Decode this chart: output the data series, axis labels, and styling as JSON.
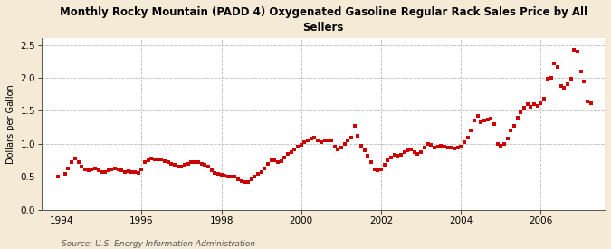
{
  "title": "Monthly Rocky Mountain (PADD 4) Oxygenated Gasoline Regular Rack Sales Price by All\nSellers",
  "ylabel": "Dollars per Gallon",
  "source": "Source: U.S. Energy Information Administration",
  "bg_color": "#f5ead5",
  "plot_bg_color": "#ffffff",
  "marker_color": "#cc0000",
  "ylim": [
    0.0,
    2.6
  ],
  "yticks": [
    0.0,
    0.5,
    1.0,
    1.5,
    2.0,
    2.5
  ],
  "xlim": [
    1993.5,
    2007.6
  ],
  "xticks": [
    1994,
    1996,
    1998,
    2000,
    2002,
    2004,
    2006
  ],
  "data": [
    [
      1993.917,
      0.51
    ],
    [
      1994.083,
      0.55
    ],
    [
      1994.167,
      0.63
    ],
    [
      1994.25,
      0.72
    ],
    [
      1994.333,
      0.78
    ],
    [
      1994.417,
      0.72
    ],
    [
      1994.5,
      0.66
    ],
    [
      1994.583,
      0.62
    ],
    [
      1994.667,
      0.6
    ],
    [
      1994.75,
      0.62
    ],
    [
      1994.833,
      0.63
    ],
    [
      1994.917,
      0.6
    ],
    [
      1995.0,
      0.57
    ],
    [
      1995.083,
      0.58
    ],
    [
      1995.167,
      0.6
    ],
    [
      1995.25,
      0.62
    ],
    [
      1995.333,
      0.63
    ],
    [
      1995.417,
      0.62
    ],
    [
      1995.5,
      0.6
    ],
    [
      1995.583,
      0.58
    ],
    [
      1995.667,
      0.59
    ],
    [
      1995.75,
      0.58
    ],
    [
      1995.833,
      0.57
    ],
    [
      1995.917,
      0.56
    ],
    [
      1996.0,
      0.62
    ],
    [
      1996.083,
      0.72
    ],
    [
      1996.167,
      0.75
    ],
    [
      1996.25,
      0.78
    ],
    [
      1996.333,
      0.77
    ],
    [
      1996.417,
      0.77
    ],
    [
      1996.5,
      0.76
    ],
    [
      1996.583,
      0.74
    ],
    [
      1996.667,
      0.72
    ],
    [
      1996.75,
      0.7
    ],
    [
      1996.833,
      0.68
    ],
    [
      1996.917,
      0.66
    ],
    [
      1997.0,
      0.66
    ],
    [
      1997.083,
      0.68
    ],
    [
      1997.167,
      0.7
    ],
    [
      1997.25,
      0.72
    ],
    [
      1997.333,
      0.73
    ],
    [
      1997.417,
      0.72
    ],
    [
      1997.5,
      0.7
    ],
    [
      1997.583,
      0.68
    ],
    [
      1997.667,
      0.65
    ],
    [
      1997.75,
      0.6
    ],
    [
      1997.833,
      0.56
    ],
    [
      1997.917,
      0.54
    ],
    [
      1998.0,
      0.53
    ],
    [
      1998.083,
      0.52
    ],
    [
      1998.167,
      0.51
    ],
    [
      1998.25,
      0.5
    ],
    [
      1998.333,
      0.5
    ],
    [
      1998.417,
      0.47
    ],
    [
      1998.5,
      0.44
    ],
    [
      1998.583,
      0.42
    ],
    [
      1998.667,
      0.43
    ],
    [
      1998.75,
      0.46
    ],
    [
      1998.833,
      0.5
    ],
    [
      1998.917,
      0.54
    ],
    [
      1999.0,
      0.58
    ],
    [
      1999.083,
      0.63
    ],
    [
      1999.167,
      0.7
    ],
    [
      1999.25,
      0.75
    ],
    [
      1999.333,
      0.75
    ],
    [
      1999.417,
      0.73
    ],
    [
      1999.5,
      0.74
    ],
    [
      1999.583,
      0.8
    ],
    [
      1999.667,
      0.85
    ],
    [
      1999.75,
      0.88
    ],
    [
      1999.833,
      0.92
    ],
    [
      1999.917,
      0.96
    ],
    [
      2000.0,
      0.98
    ],
    [
      2000.083,
      1.02
    ],
    [
      2000.167,
      1.06
    ],
    [
      2000.25,
      1.08
    ],
    [
      2000.333,
      1.1
    ],
    [
      2000.417,
      1.06
    ],
    [
      2000.5,
      1.03
    ],
    [
      2000.583,
      1.05
    ],
    [
      2000.667,
      1.06
    ],
    [
      2000.75,
      1.05
    ],
    [
      2000.833,
      0.96
    ],
    [
      2000.917,
      0.92
    ],
    [
      2001.0,
      0.95
    ],
    [
      2001.083,
      1.0
    ],
    [
      2001.167,
      1.05
    ],
    [
      2001.25,
      1.1
    ],
    [
      2001.333,
      1.27
    ],
    [
      2001.417,
      1.12
    ],
    [
      2001.5,
      0.97
    ],
    [
      2001.583,
      0.9
    ],
    [
      2001.667,
      0.82
    ],
    [
      2001.75,
      0.72
    ],
    [
      2001.833,
      0.62
    ],
    [
      2001.917,
      0.6
    ],
    [
      2002.0,
      0.62
    ],
    [
      2002.083,
      0.68
    ],
    [
      2002.167,
      0.75
    ],
    [
      2002.25,
      0.8
    ],
    [
      2002.333,
      0.83
    ],
    [
      2002.417,
      0.82
    ],
    [
      2002.5,
      0.84
    ],
    [
      2002.583,
      0.88
    ],
    [
      2002.667,
      0.9
    ],
    [
      2002.75,
      0.92
    ],
    [
      2002.833,
      0.88
    ],
    [
      2002.917,
      0.85
    ],
    [
      2003.0,
      0.88
    ],
    [
      2003.083,
      0.95
    ],
    [
      2003.167,
      1.0
    ],
    [
      2003.25,
      0.98
    ],
    [
      2003.333,
      0.95
    ],
    [
      2003.417,
      0.96
    ],
    [
      2003.5,
      0.97
    ],
    [
      2003.583,
      0.96
    ],
    [
      2003.667,
      0.95
    ],
    [
      2003.75,
      0.94
    ],
    [
      2003.833,
      0.93
    ],
    [
      2003.917,
      0.94
    ],
    [
      2004.0,
      0.96
    ],
    [
      2004.083,
      1.02
    ],
    [
      2004.167,
      1.1
    ],
    [
      2004.25,
      1.2
    ],
    [
      2004.333,
      1.35
    ],
    [
      2004.417,
      1.43
    ],
    [
      2004.5,
      1.33
    ],
    [
      2004.583,
      1.35
    ],
    [
      2004.667,
      1.37
    ],
    [
      2004.75,
      1.38
    ],
    [
      2004.833,
      1.3
    ],
    [
      2004.917,
      1.0
    ],
    [
      2005.0,
      0.97
    ],
    [
      2005.083,
      1.0
    ],
    [
      2005.167,
      1.08
    ],
    [
      2005.25,
      1.2
    ],
    [
      2005.333,
      1.28
    ],
    [
      2005.417,
      1.4
    ],
    [
      2005.5,
      1.48
    ],
    [
      2005.583,
      1.55
    ],
    [
      2005.667,
      1.6
    ],
    [
      2005.75,
      1.56
    ],
    [
      2005.833,
      1.6
    ],
    [
      2005.917,
      1.58
    ],
    [
      2006.0,
      1.62
    ],
    [
      2006.083,
      1.68
    ],
    [
      2006.167,
      1.98
    ],
    [
      2006.25,
      2.0
    ],
    [
      2006.333,
      2.22
    ],
    [
      2006.417,
      2.16
    ],
    [
      2006.5,
      1.88
    ],
    [
      2006.583,
      1.85
    ],
    [
      2006.667,
      1.9
    ],
    [
      2006.75,
      1.98
    ],
    [
      2006.833,
      2.42
    ],
    [
      2006.917,
      2.4
    ],
    [
      2007.0,
      2.1
    ],
    [
      2007.083,
      1.95
    ],
    [
      2007.167,
      1.65
    ],
    [
      2007.25,
      1.62
    ]
  ]
}
